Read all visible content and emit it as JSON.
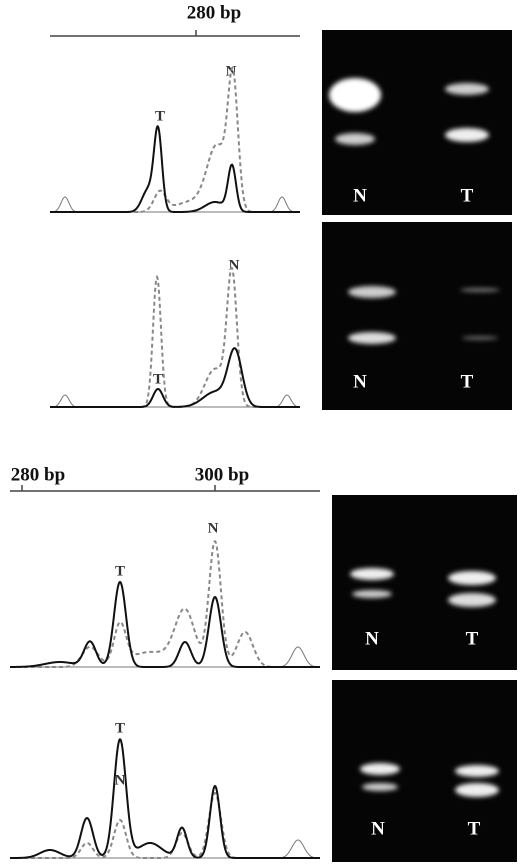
{
  "top_figure": {
    "axis_labels": [
      "280 bp"
    ],
    "panels": [
      {
        "peak_labels": [
          "T",
          "N"
        ],
        "gel_lanes": [
          "N",
          "T"
        ]
      },
      {
        "peak_labels": [
          "T",
          "N"
        ],
        "gel_lanes": [
          "N",
          "T"
        ]
      }
    ]
  },
  "bottom_figure": {
    "axis_labels": [
      "280 bp",
      "300 bp"
    ],
    "panels": [
      {
        "peak_labels": [
          "T",
          "N"
        ],
        "gel_lanes": [
          "N",
          "T"
        ]
      },
      {
        "peak_labels": [
          "T",
          "N"
        ],
        "gel_lanes": [
          "N",
          "T"
        ]
      }
    ]
  }
}
